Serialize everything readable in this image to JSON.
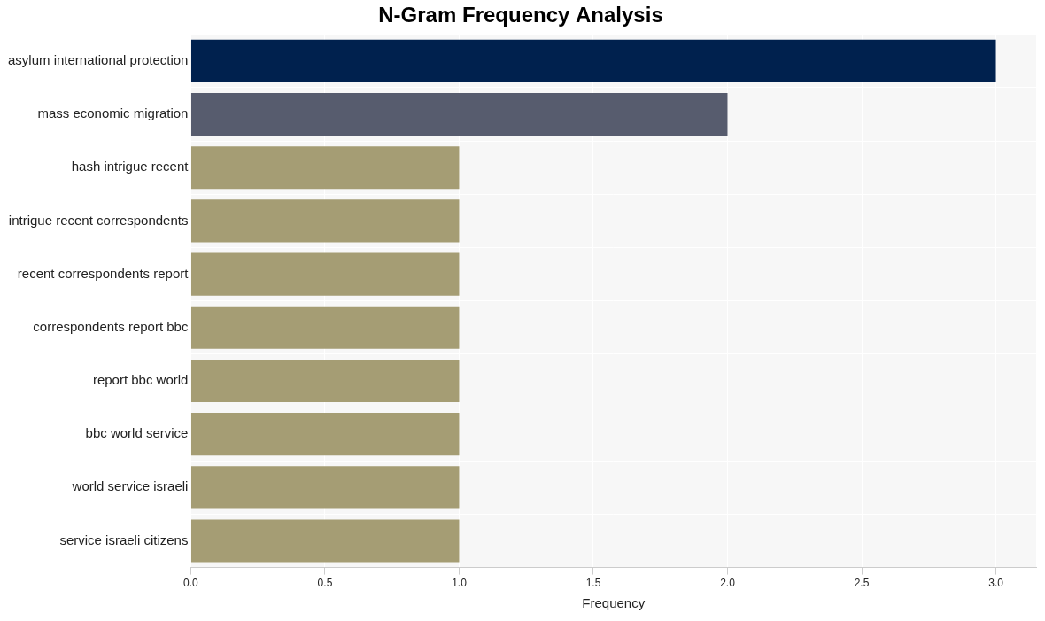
{
  "chart_data": {
    "type": "bar",
    "orientation": "horizontal",
    "title": "N-Gram Frequency Analysis",
    "x_label": "Frequency",
    "categories": [
      "asylum international protection",
      "mass economic migration",
      "hash intrigue recent",
      "intrigue recent correspondents",
      "recent correspondents report",
      "correspondents report bbc",
      "report bbc world",
      "bbc world service",
      "world service israeli",
      "service israeli citizens"
    ],
    "values": [
      3,
      2,
      1,
      1,
      1,
      1,
      1,
      1,
      1,
      1
    ],
    "colors": [
      "#00214e",
      "#575c6e",
      "#a59d74",
      "#a59d74",
      "#a59d74",
      "#a59d74",
      "#a59d74",
      "#a59d74",
      "#a59d74",
      "#a59d74"
    ],
    "xlim": [
      0,
      3.15
    ],
    "xticks": [
      {
        "value": 0,
        "label": "0.0"
      },
      {
        "value": 0.5,
        "label": "0.5"
      },
      {
        "value": 1,
        "label": "1.0"
      },
      {
        "value": 1.5,
        "label": "1.5"
      },
      {
        "value": 2,
        "label": "2.0"
      },
      {
        "value": 2.5,
        "label": "2.5"
      },
      {
        "value": 3,
        "label": "3.0"
      }
    ],
    "grid": true
  }
}
